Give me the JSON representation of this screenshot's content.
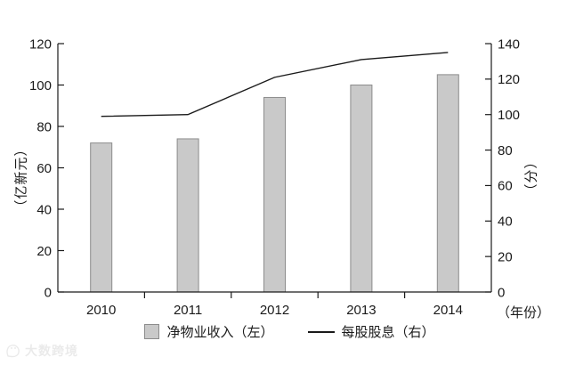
{
  "watermark": {
    "text": "大数跨境"
  },
  "chart_data": {
    "type": "bar+line",
    "title": "",
    "categories": [
      "2010",
      "2011",
      "2012",
      "2013",
      "2014"
    ],
    "series": [
      {
        "name": "净物业收入（左）",
        "type": "bar",
        "axis": "left",
        "values": [
          72,
          74,
          94,
          100,
          105
        ],
        "fill": "#c9c9c9",
        "stroke": "#8c8c8c"
      },
      {
        "name": "每股股息（右）",
        "type": "line",
        "axis": "right",
        "values": [
          99,
          100,
          121,
          131,
          135
        ],
        "color": "#1a1a1a"
      }
    ],
    "left_axis": {
      "label": "（亿新元）",
      "min": 0,
      "max": 120,
      "step": 20,
      "ticks": [
        0,
        20,
        40,
        60,
        80,
        100,
        120
      ]
    },
    "right_axis": {
      "label": "（分）",
      "min": 0,
      "max": 140,
      "step": 20,
      "ticks": [
        0,
        20,
        40,
        60,
        80,
        100,
        120,
        140
      ]
    },
    "x_axis": {
      "label": "（年份）"
    },
    "legend_position": "bottom",
    "grid": false,
    "background": "#ffffff",
    "axis_color": "#1a1a1a"
  }
}
